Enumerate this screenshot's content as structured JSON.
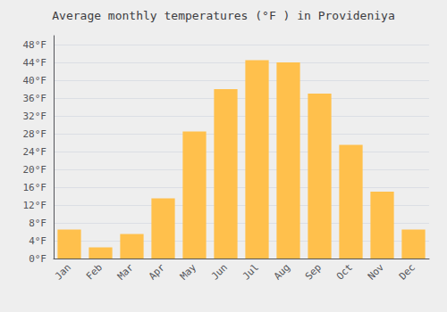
{
  "chart_data": {
    "type": "bar",
    "title": "Average monthly temperatures (°F ) in Provideniya",
    "categories": [
      "Jan",
      "Feb",
      "Mar",
      "Apr",
      "May",
      "Jun",
      "Jul",
      "Aug",
      "Sep",
      "Oct",
      "Nov",
      "Dec"
    ],
    "values": [
      6.5,
      2.5,
      5.5,
      13.5,
      28.5,
      38.0,
      44.5,
      44.0,
      37.0,
      25.5,
      15.0,
      6.5
    ],
    "color": "#FFC04C",
    "ylim": [
      0,
      50
    ],
    "yticks": [
      {
        "value": 0,
        "label": "0°F"
      },
      {
        "value": 4,
        "label": "4°F"
      },
      {
        "value": 8,
        "label": "8°F"
      },
      {
        "value": 12,
        "label": "12°F"
      },
      {
        "value": 16,
        "label": "16°F"
      },
      {
        "value": 20,
        "label": "20°F"
      },
      {
        "value": 24,
        "label": "24°F"
      },
      {
        "value": 28,
        "label": "28°F"
      },
      {
        "value": 32,
        "label": "32°F"
      },
      {
        "value": 36,
        "label": "36°F"
      },
      {
        "value": 40,
        "label": "40°F"
      },
      {
        "value": 44,
        "label": "44°F"
      },
      {
        "value": 48,
        "label": "48°F"
      }
    ],
    "grid": true
  }
}
